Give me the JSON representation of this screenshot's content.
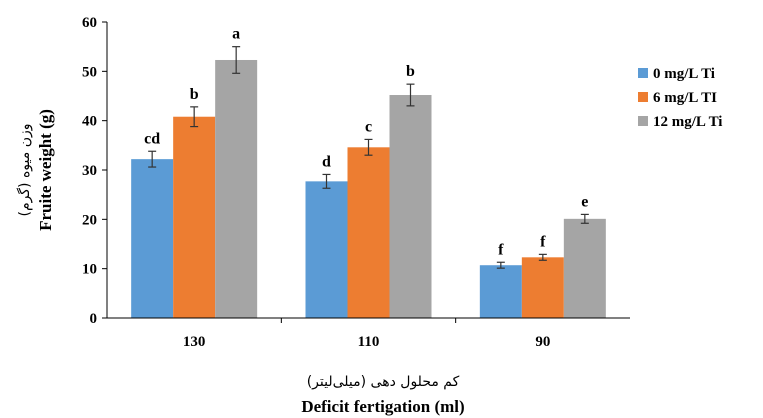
{
  "chart_data": {
    "type": "bar",
    "categories": [
      "130",
      "110",
      "90"
    ],
    "series": [
      {
        "name": "0 mg/L Ti",
        "color": "#5b9bd5",
        "values": [
          32.2,
          27.7,
          10.7
        ],
        "errors": [
          1.6,
          1.4,
          0.6
        ],
        "letters": [
          "cd",
          "d",
          "f"
        ]
      },
      {
        "name": "6 mg/L TI",
        "color": "#ed7d31",
        "values": [
          40.8,
          34.6,
          12.3
        ],
        "errors": [
          2.0,
          1.6,
          0.6
        ],
        "letters": [
          "b",
          "c",
          "f"
        ]
      },
      {
        "name": "12 mg/L Ti",
        "color": "#a5a5a5",
        "values": [
          52.3,
          45.2,
          20.1
        ],
        "errors": [
          2.7,
          2.2,
          0.9
        ],
        "letters": [
          "a",
          "b",
          "e"
        ]
      }
    ],
    "ylim": [
      0,
      60
    ],
    "yticks": [
      "0",
      "10",
      "20",
      "30",
      "40",
      "50",
      "60"
    ],
    "ylabel": "Fruite weight (g)",
    "ylabel_fa": "وزن میوه (گرم)",
    "xlabel": "Deficit fertigation (ml)",
    "xlabel_fa": "کم محلول دهی (میلی‌لیتر)",
    "legend_position": "right",
    "grid": false
  }
}
